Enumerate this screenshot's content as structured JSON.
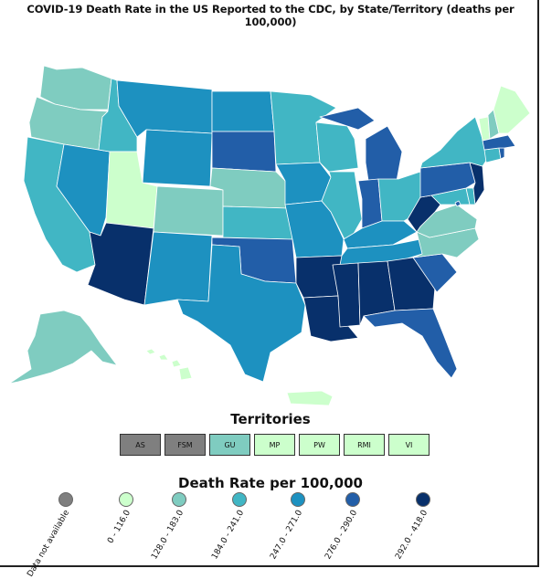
{
  "title": "COVID-19 Death Rate in the US Reported to the CDC, by State/Territory (deaths per 100,000)",
  "colors": {
    "na": "#7f7f7f",
    "c1": "#ccffcc",
    "c2": "#7fccc0",
    "c3": "#41b6c4",
    "c4": "#1d91c0",
    "c5": "#225ea8",
    "c6": "#08306b",
    "border": "#ffffff"
  },
  "territories": {
    "heading": "Territories",
    "items": [
      {
        "label": "AS",
        "color_key": "na"
      },
      {
        "label": "FSM",
        "color_key": "na"
      },
      {
        "label": "GU",
        "color_key": "c2"
      },
      {
        "label": "MP",
        "color_key": "c1"
      },
      {
        "label": "PW",
        "color_key": "c1"
      },
      {
        "label": "RMI",
        "color_key": "c1"
      },
      {
        "label": "VI",
        "color_key": "c1"
      }
    ]
  },
  "legend": {
    "heading": "Death Rate per 100,000",
    "items": [
      {
        "label": "Data not available",
        "color_key": "na"
      },
      {
        "label": "0 - 116.0",
        "color_key": "c1"
      },
      {
        "label": "128.0 - 183.0",
        "color_key": "c2"
      },
      {
        "label": "184.0 - 241.0",
        "color_key": "c3"
      },
      {
        "label": "247.0 - 271.0",
        "color_key": "c4"
      },
      {
        "label": "276.0 - 290.0",
        "color_key": "c5"
      },
      {
        "label": "292.0 - 418.0",
        "color_key": "c6"
      }
    ]
  },
  "states": {
    "WA": "c2",
    "OR": "c2",
    "CA": "c3",
    "NV": "c4",
    "ID": "c3",
    "MT": "c4",
    "WY": "c4",
    "UT": "c1",
    "AZ": "c6",
    "CO": "c2",
    "NM": "c4",
    "ND": "c4",
    "SD": "c5",
    "NE": "c2",
    "KS": "c3",
    "OK": "c5",
    "TX": "c4",
    "MN": "c3",
    "IA": "c4",
    "MO": "c4",
    "AR": "c6",
    "LA": "c6",
    "WI": "c3",
    "IL": "c3",
    "MI": "c5",
    "IN": "c5",
    "OH": "c3",
    "KY": "c4",
    "TN": "c4",
    "MS": "c6",
    "AL": "c6",
    "GA": "c6",
    "FL": "c5",
    "SC": "c5",
    "NC": "c2",
    "VA": "c2",
    "WV": "c6",
    "MD": "c3",
    "DE": "c3",
    "PA": "c5",
    "NJ": "c6",
    "NY": "c3",
    "CT": "c3",
    "RI": "c5",
    "MA": "c5",
    "VT": "c1",
    "NH": "c2",
    "ME": "c1",
    "AK": "c2",
    "HI": "c1",
    "PR": "c1",
    "DC": "c5"
  }
}
